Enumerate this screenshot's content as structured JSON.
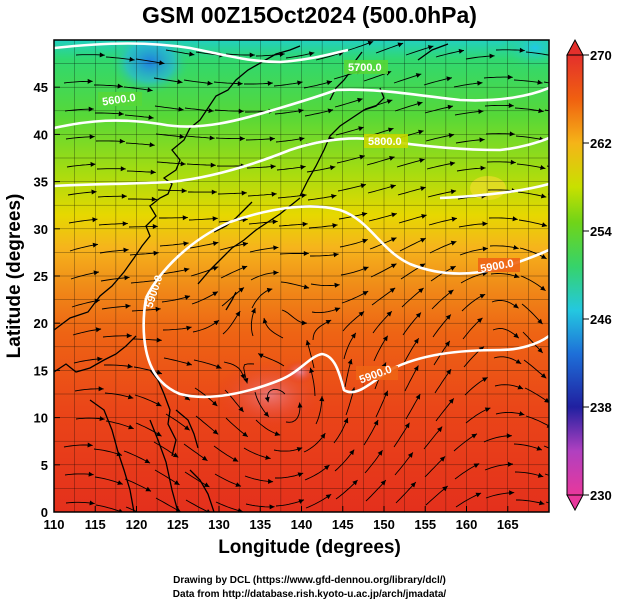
{
  "title": "GSM 00Z15Oct2024 (500.0hPa)",
  "x_axis": {
    "label": "Longitude (degrees)",
    "min": 110,
    "max": 170,
    "ticks": [
      "110",
      "115",
      "120",
      "125",
      "130",
      "135",
      "140",
      "145",
      "150",
      "155",
      "160",
      "165"
    ]
  },
  "y_axis": {
    "label": "Latitude  (degrees)",
    "min": 0,
    "max": 50,
    "ticks": [
      "0",
      "5",
      "10",
      "15",
      "20",
      "25",
      "30",
      "35",
      "40",
      "45"
    ]
  },
  "colorbar": {
    "min": 230,
    "max": 270,
    "labels": [
      "270",
      "262",
      "254",
      "246",
      "238",
      "230"
    ],
    "colors": [
      "#e8389c",
      "#2020a0",
      "#1e6fd8",
      "#24c8e0",
      "#36d36a",
      "#70d418",
      "#c8e000",
      "#f5b418",
      "#f06010",
      "#e4302c"
    ]
  },
  "contours": [
    {
      "label": "5600.0"
    },
    {
      "label": "5700.0"
    },
    {
      "label": "5800.0"
    },
    {
      "label": "5900.0"
    },
    {
      "label": "5900.0"
    },
    {
      "label": "5900.0"
    }
  ],
  "credits": {
    "line1": "Drawing by DCL (https://www.gfd-dennou.org/library/dcl/)",
    "line2": "Data from http://database.rish.kyoto-u.ac.jp/arch/jmadata/"
  }
}
